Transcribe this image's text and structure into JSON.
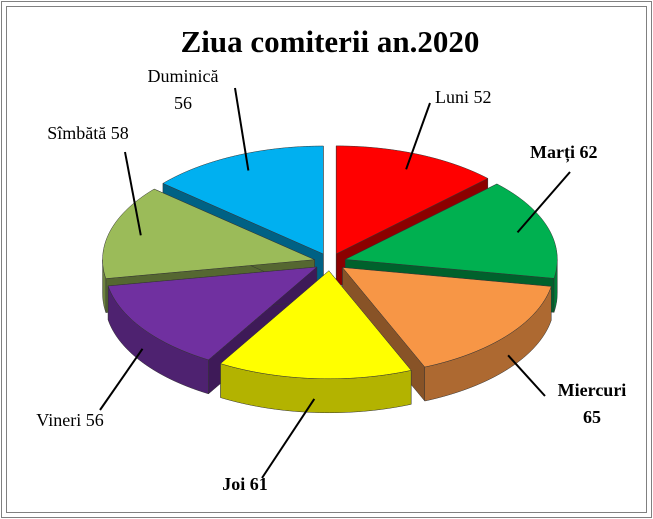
{
  "chart_data": {
    "type": "pie3d",
    "title": "Ziua comiterii an.2020",
    "categories": [
      "Luni",
      "Marți",
      "Miercuri",
      "Joi",
      "Vineri",
      "Sîmbătă",
      "Duminică"
    ],
    "values": [
      52,
      62,
      65,
      61,
      56,
      58,
      56
    ],
    "colors": [
      "#ff0000",
      "#00b050",
      "#f79646",
      "#ffff00",
      "#7030a0",
      "#9bbb59",
      "#00b0f0"
    ],
    "label_bold": [
      false,
      true,
      true,
      true,
      false,
      false,
      false
    ]
  }
}
